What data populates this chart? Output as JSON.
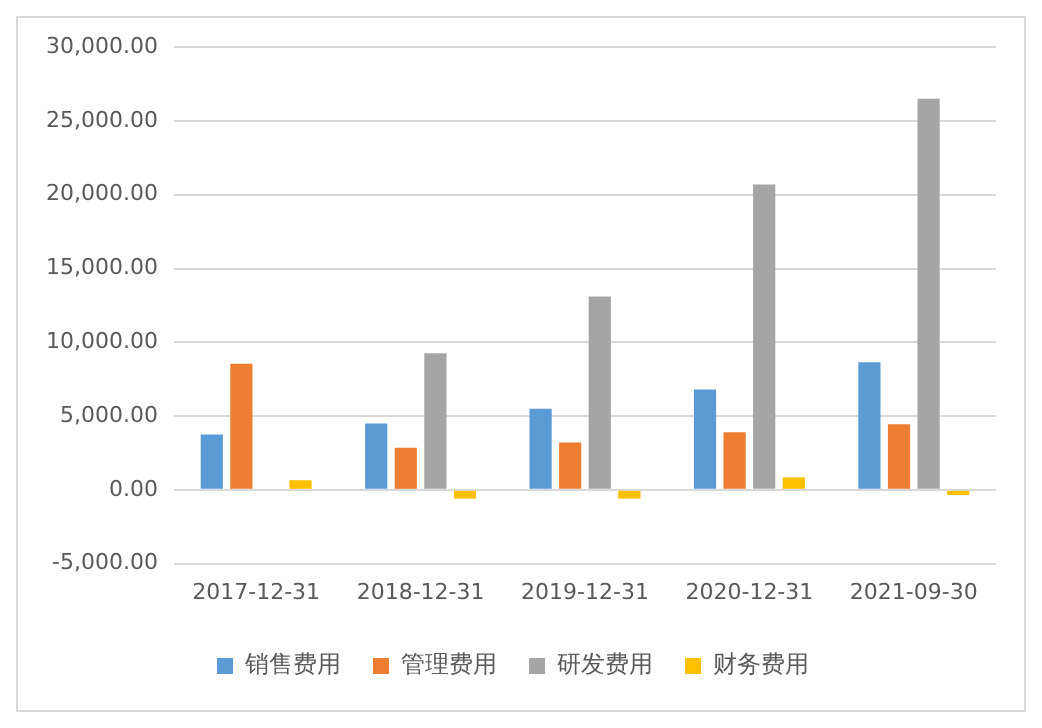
{
  "chart_data": {
    "type": "bar",
    "categories": [
      "2017-12-31",
      "2018-12-31",
      "2019-12-31",
      "2020-12-31",
      "2021-09-30"
    ],
    "series": [
      {
        "name": "销售费用",
        "color": "#5b9bd5",
        "values": [
          3750,
          4500,
          5500,
          6800,
          8650
        ]
      },
      {
        "name": "管理费用",
        "color": "#ed7d31",
        "values": [
          8550,
          2850,
          3200,
          3900,
          4450
        ]
      },
      {
        "name": "研发费用",
        "color": "#a5a5a5",
        "values": [
          0,
          9250,
          13100,
          20700,
          26500
        ]
      },
      {
        "name": "财务费用",
        "color": "#ffc000",
        "values": [
          650,
          -600,
          -600,
          850,
          -350
        ]
      }
    ],
    "ylim": [
      -5000,
      30000
    ],
    "yticks": [
      {
        "value": -5000,
        "label": "-5,000.00"
      },
      {
        "value": 0,
        "label": "0.00"
      },
      {
        "value": 5000,
        "label": "5,000.00"
      },
      {
        "value": 10000,
        "label": "10,000.00"
      },
      {
        "value": 15000,
        "label": "15,000.00"
      },
      {
        "value": 20000,
        "label": "20,000.00"
      },
      {
        "value": 25000,
        "label": "25,000.00"
      },
      {
        "value": 30000,
        "label": "30,000.00"
      }
    ],
    "grid": "y",
    "legend": "bottom"
  }
}
